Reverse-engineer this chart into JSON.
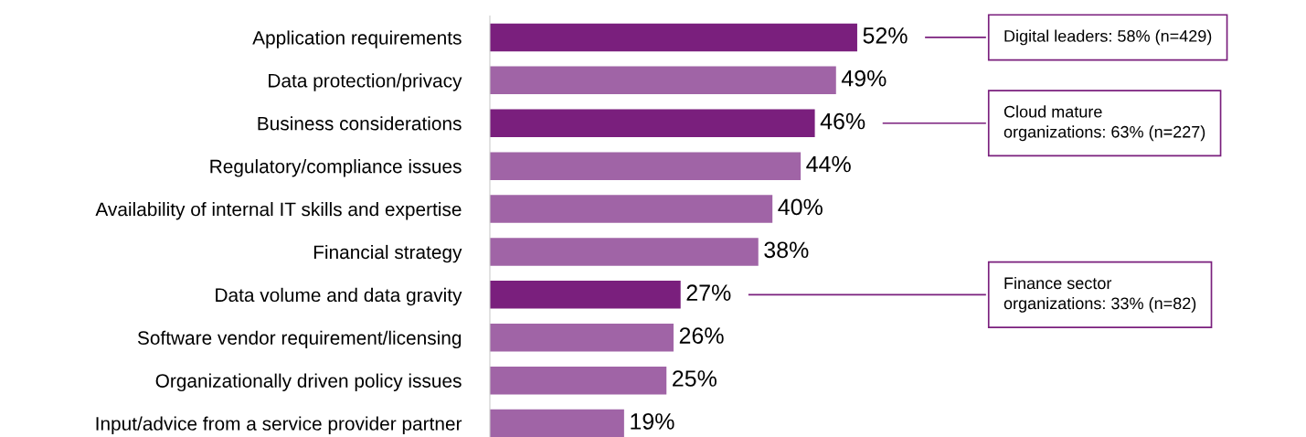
{
  "chart_data": {
    "type": "bar",
    "orientation": "horizontal",
    "grid": false,
    "legend": false,
    "categories": [
      "Application requirements",
      "Data protection/privacy",
      "Business considerations",
      "Regulatory/compliance issues",
      "Availability of internal IT skills and expertise",
      "Financial strategy",
      "Data volume and data gravity",
      "Software vendor requirement/licensing",
      "Organizationally driven policy issues",
      "Input/advice from a service provider partner"
    ],
    "values": [
      52,
      49,
      46,
      44,
      40,
      38,
      27,
      26,
      25,
      19
    ],
    "value_labels": [
      "52%",
      "49%",
      "46%",
      "44%",
      "40%",
      "38%",
      "27%",
      "26%",
      "25%",
      "19%"
    ],
    "colors": [
      "#7a1f7d",
      "#a064a6",
      "#7a1f7d",
      "#a064a6",
      "#a064a6",
      "#a064a6",
      "#7a1f7d",
      "#a064a6",
      "#a064a6",
      "#a064a6"
    ],
    "annotations": [
      "Digital leaders: 58% (n=429)",
      "Cloud mature\norganizations: 63% (n=227)",
      "Finance sector\norganizations: 33% (n=82)"
    ]
  }
}
